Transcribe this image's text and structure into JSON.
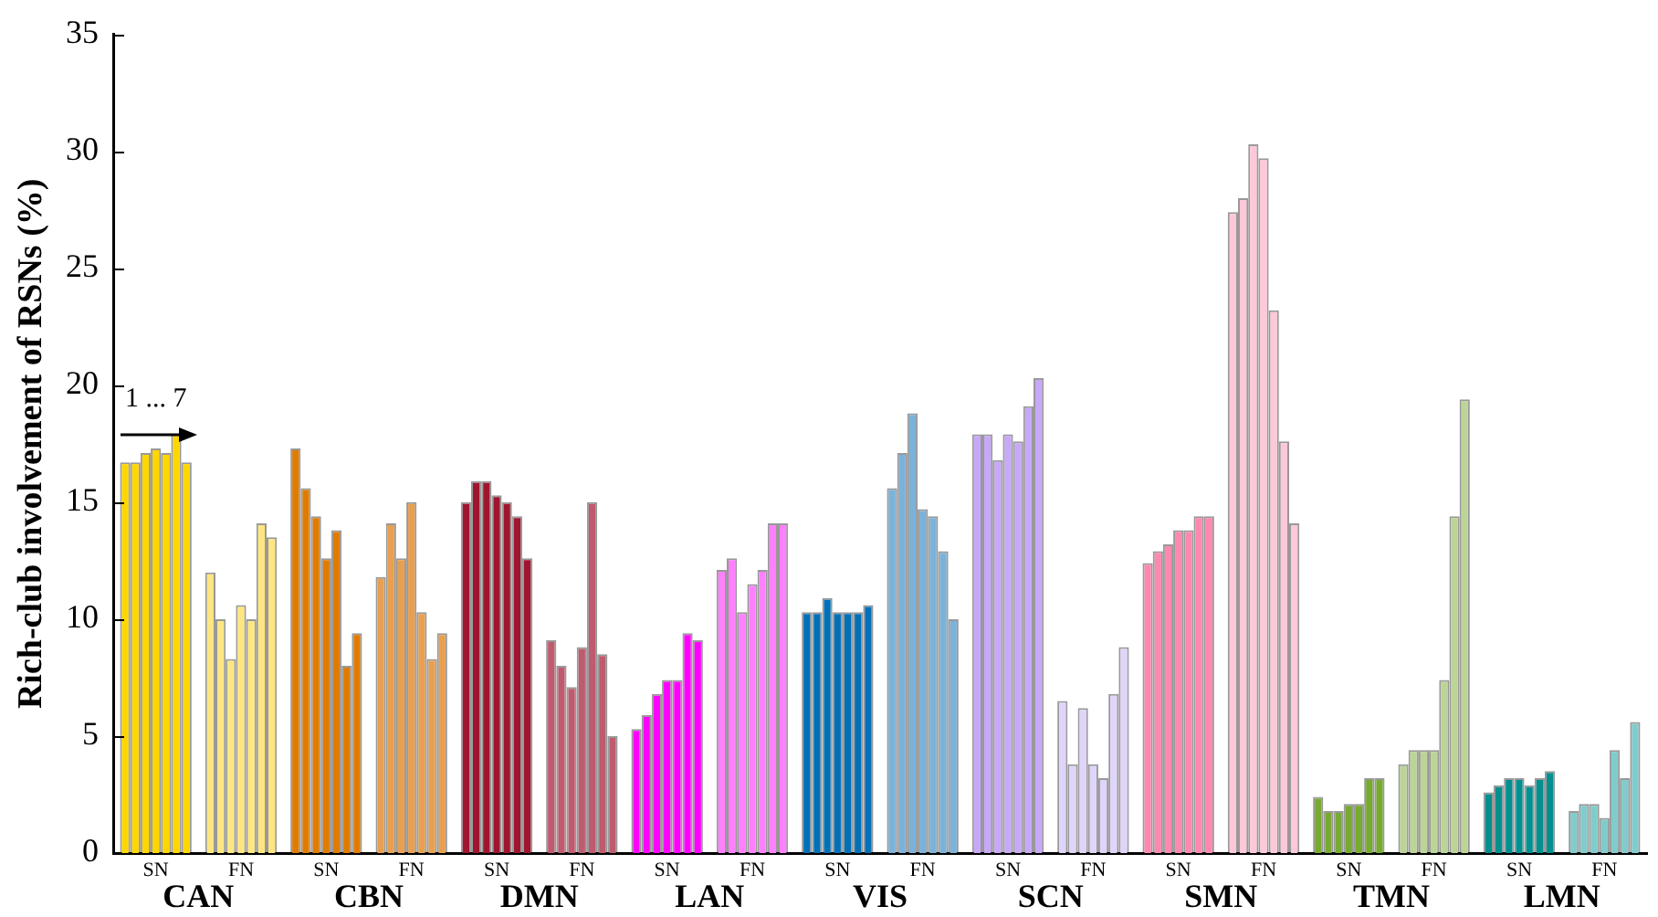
{
  "chart_data": {
    "type": "bar",
    "ylabel": "Rich-club involvement of RSNs (%)",
    "categories": [
      "SN",
      "FN",
      "SN",
      "FN",
      "SN",
      "FN",
      "SN",
      "FN",
      "SN",
      "FN",
      "SN",
      "FN",
      "SN",
      "FN",
      "SN",
      "FN",
      "SN",
      "FN"
    ],
    "series": [
      {
        "colors": [
          "#ffd700",
          "#ffe680",
          "#e07b00",
          "#e8a050",
          "#a0142e",
          "#c05a6e",
          "#ff00ff",
          "#ff80ff",
          "#0070b8",
          "#7ab2d9",
          "#c8a8f8",
          "#e0d4fa",
          "#ff88b0",
          "#ffc8d8",
          "#78aa30",
          "#bcd496",
          "#009090",
          "#80cccc"
        ],
        "values": [
          16.7,
          12.0,
          17.3,
          11.8,
          15.0,
          9.1,
          5.3,
          12.1,
          10.3,
          15.6,
          17.9,
          6.5,
          12.4,
          27.4,
          2.4,
          3.8,
          2.6,
          1.8
        ]
      },
      {
        "colors": [
          "#ffd700",
          "#ffe680",
          "#e07b00",
          "#e8a050",
          "#a0142e",
          "#c05a6e",
          "#ff00ff",
          "#ff80ff",
          "#0070b8",
          "#7ab2d9",
          "#c8a8f8",
          "#e0d4fa",
          "#ff88b0",
          "#ffc8d8",
          "#78aa30",
          "#bcd496",
          "#009090",
          "#80cccc"
        ],
        "values": [
          16.7,
          10.0,
          15.6,
          14.1,
          15.9,
          8.0,
          5.9,
          12.6,
          10.3,
          17.1,
          17.9,
          3.8,
          12.9,
          28.0,
          1.8,
          4.4,
          2.9,
          2.1
        ]
      },
      {
        "colors": [
          "#ffd700",
          "#ffe680",
          "#e07b00",
          "#e8a050",
          "#a0142e",
          "#c05a6e",
          "#ff00ff",
          "#ff80ff",
          "#0070b8",
          "#7ab2d9",
          "#c8a8f8",
          "#e0d4fa",
          "#ff88b0",
          "#ffc8d8",
          "#78aa30",
          "#bcd496",
          "#009090",
          "#80cccc"
        ],
        "values": [
          17.1,
          8.3,
          14.4,
          12.6,
          15.9,
          7.1,
          6.8,
          10.3,
          10.9,
          18.8,
          16.8,
          6.2,
          13.2,
          30.3,
          1.8,
          4.4,
          3.2,
          2.1
        ]
      },
      {
        "colors": [
          "#ffd700",
          "#ffe680",
          "#e07b00",
          "#e8a050",
          "#a0142e",
          "#c05a6e",
          "#ff00ff",
          "#ff80ff",
          "#0070b8",
          "#7ab2d9",
          "#c8a8f8",
          "#e0d4fa",
          "#ff88b0",
          "#ffc8d8",
          "#78aa30",
          "#bcd496",
          "#009090",
          "#80cccc"
        ],
        "values": [
          17.3,
          10.6,
          12.6,
          15.0,
          15.3,
          8.8,
          7.4,
          11.5,
          10.3,
          14.7,
          17.9,
          3.8,
          13.8,
          29.7,
          2.1,
          4.4,
          3.2,
          1.5
        ]
      },
      {
        "colors": [
          "#ffd700",
          "#ffe680",
          "#e07b00",
          "#e8a050",
          "#a0142e",
          "#c05a6e",
          "#ff00ff",
          "#ff80ff",
          "#0070b8",
          "#7ab2d9",
          "#c8a8f8",
          "#e0d4fa",
          "#ff88b0",
          "#ffc8d8",
          "#78aa30",
          "#bcd496",
          "#009090",
          "#80cccc"
        ],
        "values": [
          17.1,
          10.0,
          13.8,
          10.3,
          15.0,
          15.0,
          7.4,
          12.1,
          10.3,
          14.4,
          17.6,
          3.2,
          13.8,
          23.2,
          2.1,
          7.4,
          2.9,
          4.4
        ]
      },
      {
        "colors": [
          "#ffd700",
          "#ffe680",
          "#e07b00",
          "#e8a050",
          "#a0142e",
          "#c05a6e",
          "#ff00ff",
          "#ff80ff",
          "#0070b8",
          "#7ab2d9",
          "#c8a8f8",
          "#e0d4fa",
          "#ff88b0",
          "#ffc8d8",
          "#78aa30",
          "#bcd496",
          "#009090",
          "#80cccc"
        ],
        "values": [
          17.9,
          14.1,
          8.0,
          8.3,
          14.4,
          8.5,
          9.4,
          14.1,
          10.3,
          12.9,
          19.1,
          6.8,
          14.4,
          17.6,
          3.2,
          14.4,
          3.2,
          3.2
        ]
      },
      {
        "colors": [
          "#ffd700",
          "#ffe680",
          "#e07b00",
          "#e8a050",
          "#a0142e",
          "#c05a6e",
          "#ff00ff",
          "#ff80ff",
          "#0070b8",
          "#7ab2d9",
          "#c8a8f8",
          "#e0d4fa",
          "#ff88b0",
          "#ffc8d8",
          "#78aa30",
          "#bcd496",
          "#009090",
          "#80cccc"
        ],
        "values": [
          16.7,
          13.5,
          9.4,
          9.4,
          12.6,
          5.0,
          9.1,
          14.1,
          10.6,
          10.0,
          20.3,
          8.8,
          14.4,
          14.1,
          3.2,
          19.4,
          3.5,
          5.6
        ]
      }
    ],
    "ylim": [
      0,
      35
    ],
    "yticks": [
      0,
      5,
      10,
      15,
      20,
      25,
      30,
      35
    ],
    "annotations": [
      "1 ... 7",
      "CAN",
      "CBN",
      "DMN",
      "LAN",
      "VIS",
      "SCN",
      "SMN",
      "TMN",
      "LMN"
    ]
  }
}
